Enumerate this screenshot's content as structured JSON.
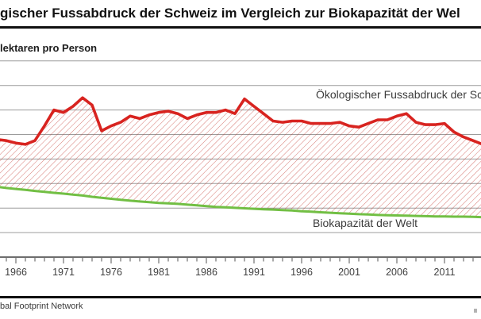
{
  "header": {
    "title_fragment": "gischer Fussabdruck der Schweiz im Vergleich zur Biokapazität der Wel"
  },
  "y_axis_label_fragment": "lektaren pro Person",
  "series_labels": {
    "footprint": "Ökologischer Fussabdruck der Schwe",
    "biocapacity": "Biokapazität der Welt"
  },
  "source_fragment": "bal Footprint Network",
  "colors": {
    "footprint_line": "#d8231f",
    "hatch_fill": "#c2382f",
    "biocapacity_line": "#72bf44",
    "gridline": "#9c9c9c",
    "axis": "#3d3d3d",
    "rule": "#101010",
    "text": "#3c3c3c"
  },
  "chart_data": {
    "type": "area",
    "title": "gischer Fussabdruck der Schweiz im Vergleich zur Biokapazität der Wel",
    "ylabel": "lektaren pro Person",
    "xlabel": "",
    "grid": "horizontal",
    "ylim": [
      0,
      8
    ],
    "y_gridlines": [
      1,
      2,
      3,
      4,
      5,
      6,
      7,
      8
    ],
    "x_tick_labels": [
      "1966",
      "1971",
      "1976",
      "1981",
      "1986",
      "1991",
      "1996",
      "2001",
      "2006",
      "2011"
    ],
    "x": [
      1964,
      1965,
      1966,
      1967,
      1968,
      1969,
      1970,
      1971,
      1972,
      1973,
      1974,
      1975,
      1976,
      1977,
      1978,
      1979,
      1980,
      1981,
      1982,
      1983,
      1984,
      1985,
      1986,
      1987,
      1988,
      1989,
      1990,
      1991,
      1992,
      1993,
      1994,
      1995,
      1996,
      1997,
      1998,
      1999,
      2000,
      2001,
      2002,
      2003,
      2004,
      2005,
      2006,
      2007,
      2008,
      2009,
      2010,
      2011,
      2012,
      2013,
      2014
    ],
    "series": [
      {
        "name": "Ökologischer Fussabdruck der Schwe",
        "unit": "Hektaren pro Person",
        "color": "#d8231f",
        "fill": "red-diagonal-hatch-between-lines",
        "values": [
          4.8,
          4.75,
          4.65,
          4.6,
          4.75,
          5.35,
          6.0,
          5.9,
          6.15,
          6.5,
          6.2,
          5.15,
          5.35,
          5.5,
          5.75,
          5.65,
          5.8,
          5.9,
          5.95,
          5.85,
          5.65,
          5.8,
          5.9,
          5.9,
          6.0,
          5.85,
          6.45,
          6.15,
          5.85,
          5.55,
          5.5,
          5.55,
          5.55,
          5.45,
          5.45,
          5.45,
          5.5,
          5.35,
          5.3,
          5.45,
          5.6,
          5.6,
          5.75,
          5.85,
          5.5,
          5.4,
          5.4,
          5.45,
          5.1,
          4.9,
          4.75
        ]
      },
      {
        "name": "Biokapazität der Welt",
        "unit": "Hektaren pro Person",
        "color": "#72bf44",
        "fill": "none",
        "values": [
          2.87,
          2.82,
          2.78,
          2.74,
          2.7,
          2.66,
          2.62,
          2.59,
          2.55,
          2.51,
          2.46,
          2.42,
          2.38,
          2.34,
          2.3,
          2.27,
          2.24,
          2.21,
          2.19,
          2.17,
          2.14,
          2.11,
          2.08,
          2.05,
          2.03,
          2.01,
          1.99,
          1.97,
          1.95,
          1.94,
          1.92,
          1.9,
          1.87,
          1.85,
          1.83,
          1.81,
          1.79,
          1.77,
          1.75,
          1.74,
          1.72,
          1.71,
          1.7,
          1.69,
          1.68,
          1.67,
          1.66,
          1.66,
          1.65,
          1.65,
          1.64
        ]
      }
    ]
  }
}
